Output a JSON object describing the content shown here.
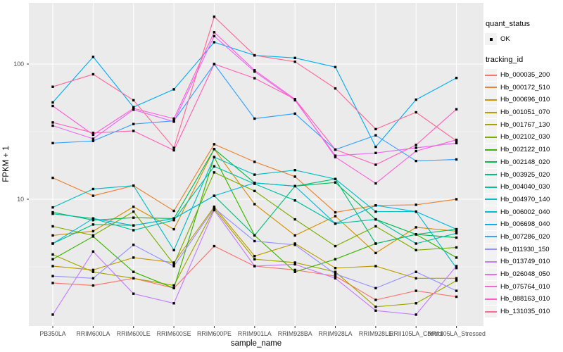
{
  "axes": {
    "x_title": "sample_name",
    "y_title": "FPKM + 1",
    "y_tick_labels": [
      "100",
      "10"
    ]
  },
  "legend": {
    "quant_status": {
      "title": "quant_status",
      "items": [
        {
          "label": "OK",
          "marker": "point-icon"
        }
      ]
    },
    "tracking_id": {
      "title": "tracking_id"
    }
  },
  "style": {
    "panel_bg": "#EBEBEB",
    "grid_color": "#FFFFFF",
    "tick_color": "#333333",
    "axis_text_color": "#4d4d4d",
    "point_color": "#000000",
    "legend_key_bg": "#F2F2F2"
  },
  "chart_data": {
    "type": "line",
    "title": "",
    "xlabel": "sample_name",
    "ylabel": "FPKM + 1",
    "y_scale": "log10",
    "grid": true,
    "legend_position": "right",
    "y_major_ticks": [
      100,
      10
    ],
    "y_minor_gridlines": [
      31.62,
      3.162
    ],
    "ylim": [
      1.15,
      284
    ],
    "categories": [
      "PB350LA",
      "RRIM600LA",
      "RRIM600LE",
      "RRIM600SE",
      "RRIM600PE",
      "RRIM901LA",
      "RRIM928BA",
      "RRIM928LA",
      "RRIM928LE",
      "RRII105LA_Control",
      "RRII105LA_Stressed"
    ],
    "series": [
      {
        "name": "Hb_000035_200",
        "color": "#F8766D",
        "values": [
          2.4,
          2.3,
          2.6,
          2.2,
          4.5,
          3.2,
          3.0,
          2.7,
          1.8,
          2.1,
          1.9
        ]
      },
      {
        "name": "Hb_000172_510",
        "color": "#EA8331",
        "values": [
          14.4,
          10.6,
          12.6,
          8.2,
          25.5,
          18.9,
          14.7,
          8.0,
          9.0,
          9.1,
          10.0
        ]
      },
      {
        "name": "Hb_000696_010",
        "color": "#D89000",
        "values": [
          5.4,
          5.8,
          8.8,
          6.0,
          23.5,
          9.2,
          5.4,
          7.5,
          4.0,
          6.2,
          5.8
        ]
      },
      {
        "name": "Hb_001051_070",
        "color": "#C09B00",
        "values": [
          3.2,
          3.0,
          3.7,
          3.4,
          8.8,
          3.8,
          4.7,
          3.1,
          3.2,
          2.6,
          2.6
        ]
      },
      {
        "name": "Hb_001767_130",
        "color": "#A3A500",
        "values": [
          3.9,
          2.9,
          2.6,
          2.3,
          8.5,
          3.6,
          3.4,
          2.9,
          1.6,
          1.7,
          2.5
        ]
      },
      {
        "name": "Hb_002102_030",
        "color": "#7CAE00",
        "values": [
          6.3,
          5.4,
          8.1,
          3.3,
          15.8,
          11.5,
          7.1,
          4.5,
          6.3,
          4.2,
          4.4
        ]
      },
      {
        "name": "Hb_002122_010",
        "color": "#39B600",
        "values": [
          3.6,
          5.3,
          2.9,
          2.2,
          20.5,
          5.4,
          2.9,
          3.6,
          4.7,
          5.5,
          3.7
        ]
      },
      {
        "name": "Hb_002148_020",
        "color": "#00BB4E",
        "values": [
          8.0,
          7.0,
          7.3,
          7.2,
          23.5,
          13.2,
          12.5,
          13.3,
          7.1,
          5.5,
          5.2
        ]
      },
      {
        "name": "Hb_003925_020",
        "color": "#00BF7D",
        "values": [
          4.7,
          6.5,
          6.4,
          7.2,
          10.6,
          5.4,
          12.5,
          14.1,
          4.7,
          5.5,
          6.0
        ]
      },
      {
        "name": "Hb_004040_030",
        "color": "#00C1A3",
        "values": [
          7.8,
          7.2,
          5.9,
          7.0,
          17.5,
          13.0,
          9.8,
          6.6,
          7.1,
          4.7,
          5.6
        ]
      },
      {
        "name": "Hb_004970_140",
        "color": "#00BFC4",
        "values": [
          8.7,
          11.9,
          12.6,
          4.2,
          20.5,
          15.2,
          16.4,
          14.1,
          8.1,
          8.1,
          3.1
        ]
      },
      {
        "name": "Hb_006002_040",
        "color": "#00BADE",
        "values": [
          4.7,
          7.2,
          6.4,
          7.2,
          10.6,
          13.2,
          12.5,
          6.6,
          9.0,
          8.1,
          6.0
        ]
      },
      {
        "name": "Hb_006698_040",
        "color": "#00B0F6",
        "values": [
          52,
          113,
          48,
          65,
          145,
          116,
          111,
          95,
          24.4,
          54.5,
          79
        ]
      },
      {
        "name": "Hb_007286_020",
        "color": "#35A2FF",
        "values": [
          26,
          27,
          36,
          38,
          100,
          39.5,
          43,
          23.3,
          29.7,
          19.2,
          19.7
        ]
      },
      {
        "name": "Hb_011930_150",
        "color": "#9590FF",
        "values": [
          2.7,
          2.6,
          4.6,
          3.2,
          8.6,
          4.9,
          4.6,
          2.8,
          2.2,
          2.9,
          2.1
        ]
      },
      {
        "name": "Hb_013749_010",
        "color": "#C77CFF",
        "values": [
          1.4,
          4.1,
          2.0,
          1.7,
          8.3,
          3.2,
          3.3,
          2.6,
          1.5,
          1.4,
          3.2
        ]
      },
      {
        "name": "Hb_026048_050",
        "color": "#E76BF3",
        "values": [
          35,
          28,
          46,
          37.5,
          161,
          88,
          54,
          21,
          22,
          24,
          26
        ]
      },
      {
        "name": "Hb_075764_010",
        "color": "#FA62DB",
        "values": [
          49,
          30,
          47,
          39.5,
          172,
          90,
          55,
          20.5,
          13.1,
          22.7,
          27.5
        ]
      },
      {
        "name": "Hb_088163_010",
        "color": "#FF62BC",
        "values": [
          37,
          31,
          32,
          23,
          100,
          78.6,
          55,
          23.3,
          18,
          25.2,
          46.3
        ]
      },
      {
        "name": "Hb_131035_010",
        "color": "#FF6A98",
        "values": [
          68,
          84,
          54,
          24,
          224,
          116,
          104,
          66,
          33,
          44,
          27
        ]
      }
    ]
  }
}
